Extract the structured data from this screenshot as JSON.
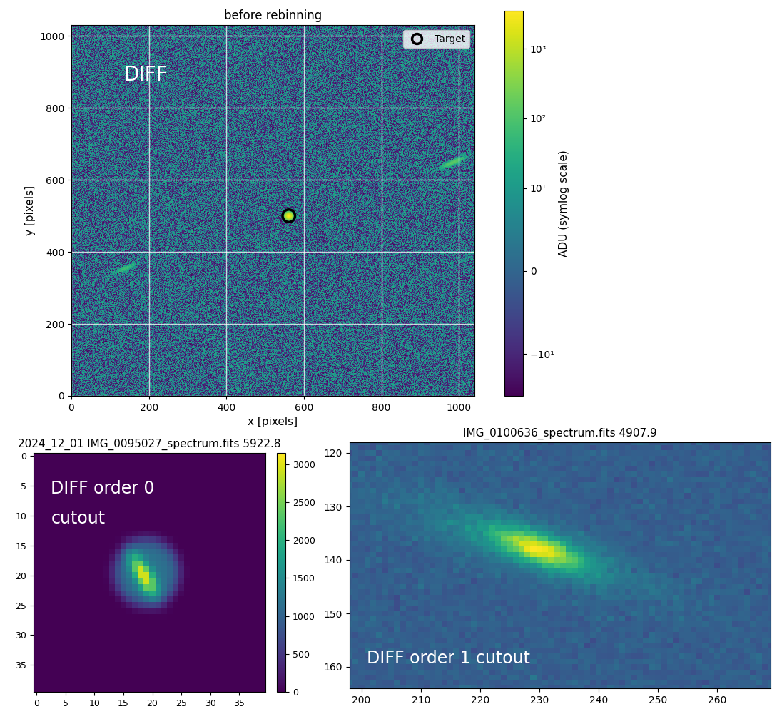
{
  "chart_data": [
    {
      "type": "image",
      "title": "before rebinning",
      "x_label": "x [pixels]",
      "y_label": "y [pixels]",
      "xlim": [
        0,
        1040
      ],
      "ylim": [
        0,
        1030
      ],
      "xticks": [
        0,
        200,
        400,
        600,
        800,
        1000
      ],
      "yticks": [
        0,
        200,
        400,
        600,
        800,
        1000
      ],
      "grid": true,
      "annotations": [
        "DIFF"
      ],
      "series": [
        {
          "name": "Target",
          "x": [
            561
          ],
          "y": [
            500
          ],
          "color": "#000000",
          "marker": "circle"
        }
      ],
      "legend": "upper right",
      "background": 0,
      "sources": [
        {
          "x": 561,
          "y": 500,
          "peak": 3000
        },
        {
          "x": 985,
          "y": 648,
          "peak": 150
        },
        {
          "x": 139,
          "y": 354,
          "peak": 60
        }
      ],
      "colorbar": {
        "label": "ADU (symlog scale)",
        "scale": "symlog",
        "lim": [
          -40,
          3500
        ],
        "ticks": [
          {
            "value": -10,
            "label": "−10¹"
          },
          0,
          {
            "value": 10,
            "label": "10¹"
          },
          {
            "value": 100,
            "label": "10²"
          },
          {
            "value": 1000,
            "label": "10³"
          }
        ]
      }
    },
    {
      "type": "image",
      "title": "2024_12_01 IMG_0095027_spectrum.fits 5922.8",
      "xlim": [
        -0.5,
        39.5
      ],
      "ylim": [
        39.5,
        -0.5
      ],
      "xticks": [
        0,
        5,
        10,
        15,
        20,
        25,
        30,
        35
      ],
      "yticks": [
        0,
        5,
        10,
        15,
        20,
        25,
        30,
        35
      ],
      "annotations": [
        "DIFF order 0",
        "cutout"
      ],
      "background": 0,
      "sources": [
        {
          "x": 18.5,
          "y": 20,
          "peak": 3100
        }
      ],
      "colorbar": {
        "scale": "linear",
        "lim": [
          0,
          3150
        ],
        "ticks": [
          0,
          500,
          1000,
          1500,
          2000,
          2500,
          3000
        ]
      }
    },
    {
      "type": "image",
      "title": "IMG_0100636_spectrum.fits 4907.9",
      "xlim": [
        198,
        269
      ],
      "ylim": [
        164,
        118
      ],
      "xticks": [
        200,
        210,
        220,
        230,
        240,
        250,
        260
      ],
      "yticks": [
        120,
        130,
        140,
        150,
        160
      ],
      "annotations": [
        "DIFF order 1 cutout"
      ],
      "background": 0.3,
      "sources": [
        {
          "x": 230,
          "y": 138,
          "peak": 1
        }
      ],
      "color_range": [
        0,
        1
      ]
    }
  ]
}
